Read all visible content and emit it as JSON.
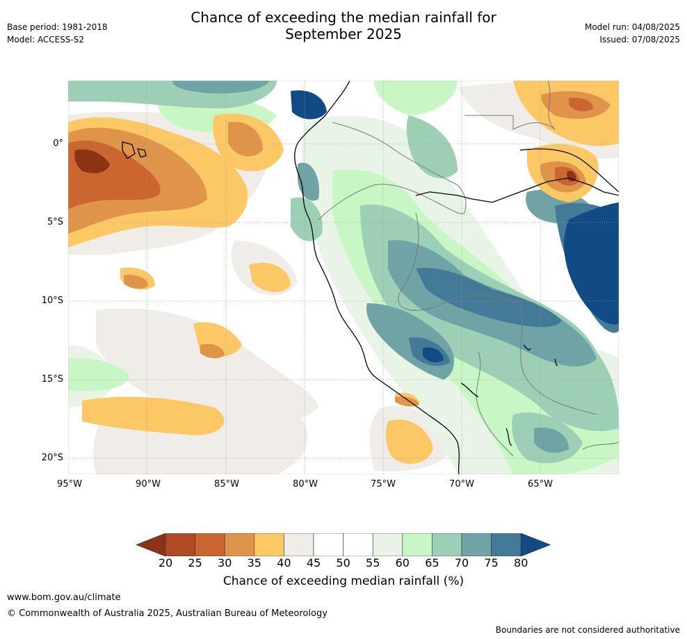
{
  "title_line1": "Chance of exceeding the median rainfall for",
  "title_line2": "September 2025",
  "base_period": "Base period: 1981-2018",
  "model": "Model: ACCESS-S2",
  "model_run": "Model run: 04/08/2025",
  "issued": "Issued: 07/08/2025",
  "lat_labels": [
    "0°",
    "5°S",
    "10°S",
    "15°S",
    "20°S"
  ],
  "lon_labels": [
    "95°W",
    "90°W",
    "85°W",
    "80°W",
    "75°W",
    "70°W",
    "65°W"
  ],
  "colorbar": {
    "ticks": [
      "20",
      "25",
      "30",
      "35",
      "40",
      "45",
      "50",
      "55",
      "60",
      "65",
      "70",
      "75",
      "80"
    ],
    "colors": [
      "#8c3316",
      "#b04a24",
      "#cc6630",
      "#e0944a",
      "#fcc866",
      "#f0ece8",
      "#ffffff",
      "#ffffff",
      "#e8f5e6",
      "#c8f7c5",
      "#9ccfb6",
      "#6fa3a6",
      "#437a98",
      "#124a85"
    ],
    "label": "Chance of exceeding median rainfall (%)"
  },
  "footer": {
    "url": "www.bom.gov.au/climate",
    "copyright": "© Commonwealth of Australia 2025, Australian Bureau of Meteorology",
    "disclaimer": "Boundaries are not considered authoritative"
  }
}
